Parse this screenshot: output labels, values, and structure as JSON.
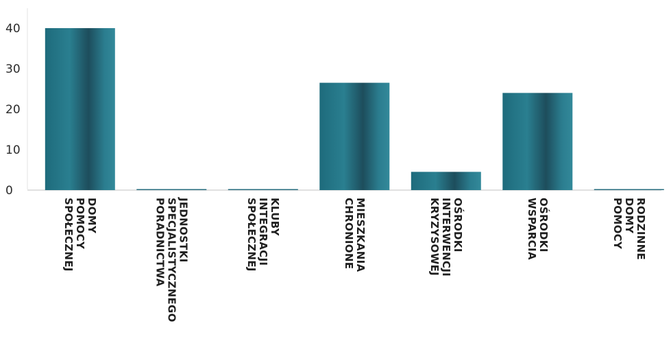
{
  "chart_data": {
    "type": "bar",
    "title": "",
    "xlabel": "",
    "ylabel": "",
    "ylim": [
      0,
      45
    ],
    "yticks": [
      0,
      10,
      20,
      30,
      40
    ],
    "grid": false,
    "legend": "none",
    "bar_color": "#2a6f80",
    "categories": [
      [
        "DOMY",
        "POMOCY",
        "SPOŁECZNEJ"
      ],
      [
        "JEDNOSTKI",
        "SPECJALISTYCZNEGO",
        "PORADNICTWA"
      ],
      [
        "KLUBY",
        "INTEGRACJI",
        "SPOŁECZNEJ"
      ],
      [
        "MIESZKANIA",
        "CHRONIONE"
      ],
      [
        "OŚRODKI",
        "INTERWENCJI",
        "KRYZYSOWEJ"
      ],
      [
        "OŚRODKI",
        "WSPARCIA"
      ],
      [
        "RODZINNE",
        "DOMY",
        "POMOCY"
      ]
    ],
    "values": [
      40,
      0,
      0,
      26.5,
      4.5,
      24,
      0
    ]
  }
}
